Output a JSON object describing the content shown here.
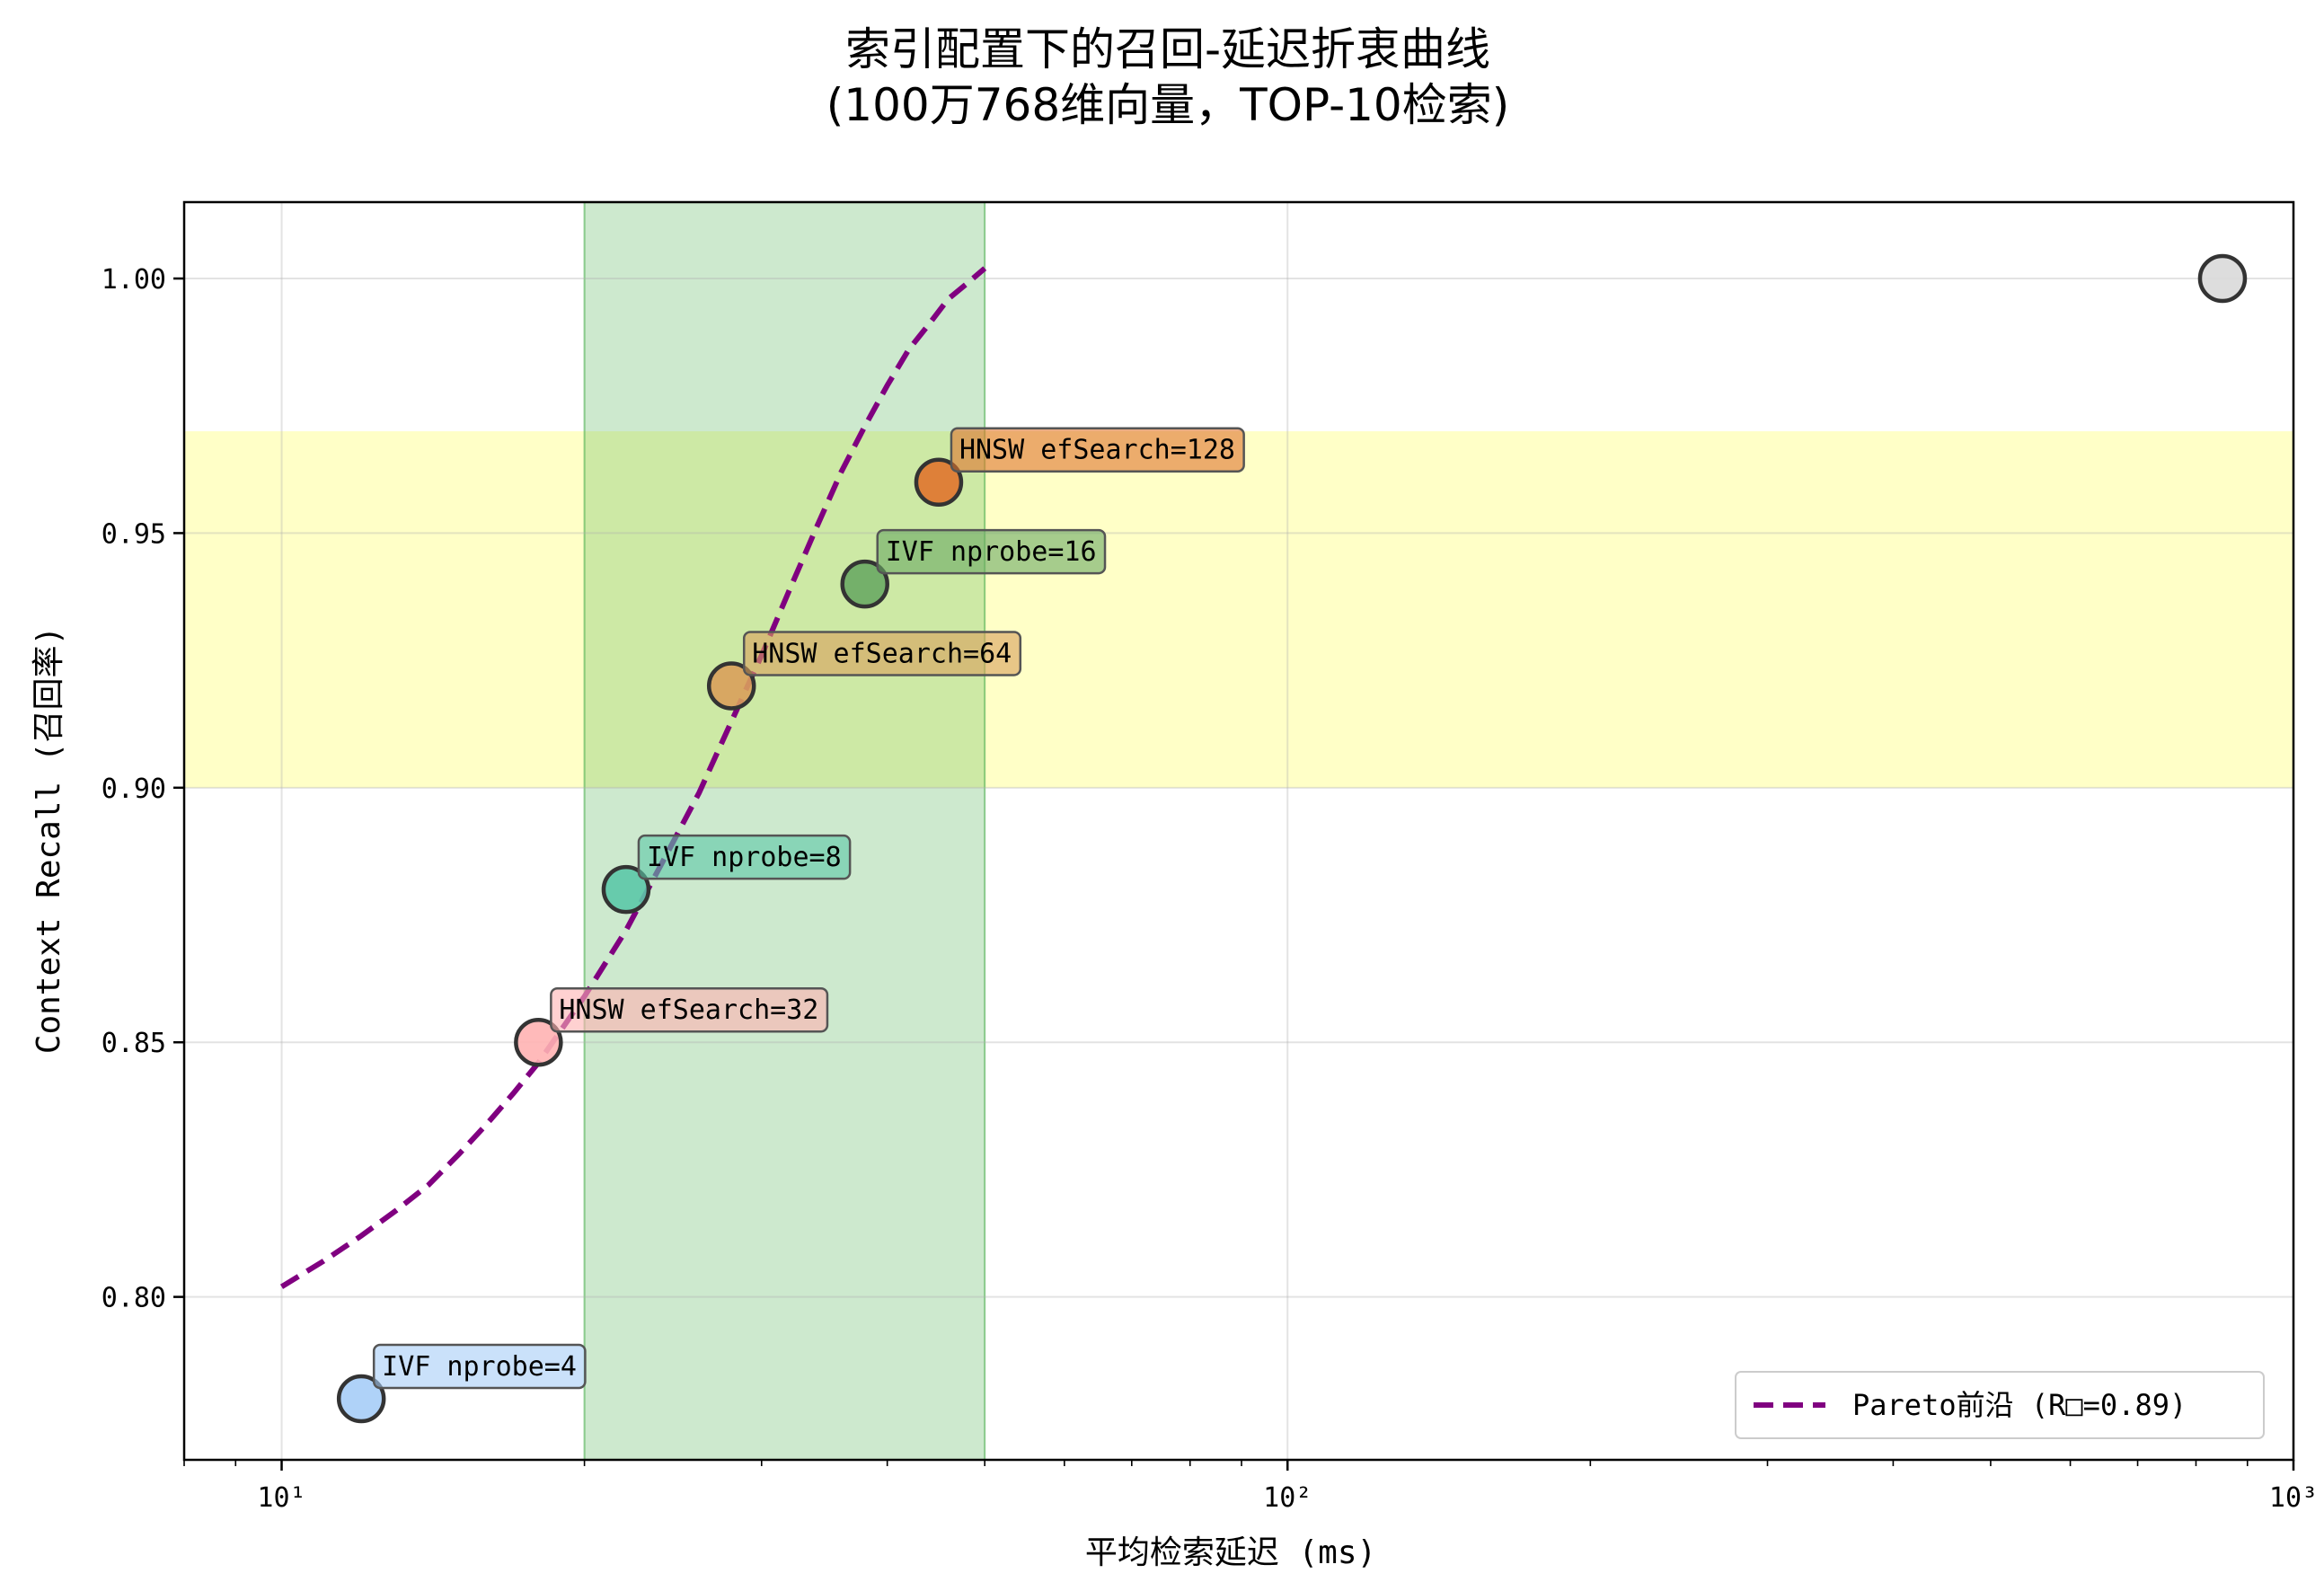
{
  "chart_data": {
    "type": "scatter",
    "title": "索引配置下的召回-延迟折衷曲线",
    "subtitle": "(100万768维向量，TOP-10检索)",
    "xlabel": "平均检索延迟 (ms)",
    "ylabel": "Context Recall (召回率)",
    "x_scale": "log",
    "xlim": [
      8,
      1000
    ],
    "ylim": [
      0.768,
      1.015
    ],
    "x_ticks": [
      {
        "value": 10,
        "label": "10¹"
      },
      {
        "value": 100,
        "label": "10²"
      },
      {
        "value": 1000,
        "label": "10³"
      }
    ],
    "y_ticks": [
      {
        "value": 0.8,
        "label": "0.80"
      },
      {
        "value": 0.85,
        "label": "0.85"
      },
      {
        "value": 0.9,
        "label": "0.90"
      },
      {
        "value": 0.95,
        "label": "0.95"
      },
      {
        "value": 1.0,
        "label": "1.00"
      }
    ],
    "grid": true,
    "shaded_regions": [
      {
        "axis": "y",
        "from": 0.9,
        "to": 0.97,
        "color": "#ffff99"
      },
      {
        "axis": "x",
        "from": 20,
        "to": 50,
        "color": "#4caf50"
      }
    ],
    "points": [
      {
        "label": "IVF nprobe=4",
        "x": 12,
        "y": 0.78,
        "color": "#a6cdf7"
      },
      {
        "label": "HNSW efSearch=32",
        "x": 18,
        "y": 0.85,
        "color": "#ffb3b3"
      },
      {
        "label": "IVF nprobe=8",
        "x": 22,
        "y": 0.88,
        "color": "#5cc8a8"
      },
      {
        "label": "HNSW efSearch=64",
        "x": 28,
        "y": 0.92,
        "color": "#d9a05b"
      },
      {
        "label": "IVF nprobe=16",
        "x": 38,
        "y": 0.94,
        "color": "#6aaa64"
      },
      {
        "label": "HNSW efSearch=128",
        "x": 45,
        "y": 0.96,
        "color": "#e0742e"
      },
      {
        "label": "",
        "x": 850,
        "y": 1.0,
        "color": "#d9d9d9"
      }
    ],
    "pareto_curve": {
      "name": "Pareto前沿 (R□=0.89)",
      "color": "#800080",
      "style": "dashed",
      "x": [
        10,
        11,
        12,
        13,
        14,
        15,
        16,
        17,
        18,
        20,
        22,
        24,
        26,
        28,
        30,
        32,
        34,
        36,
        38,
        40,
        42,
        44,
        46,
        48,
        50
      ],
      "y": [
        0.802,
        0.807,
        0.812,
        0.817,
        0.822,
        0.828,
        0.834,
        0.84,
        0.846,
        0.859,
        0.872,
        0.886,
        0.899,
        0.913,
        0.926,
        0.939,
        0.951,
        0.962,
        0.971,
        0.979,
        0.986,
        0.991,
        0.996,
        0.999,
        1.002
      ]
    },
    "legend_position": "lower-right"
  }
}
